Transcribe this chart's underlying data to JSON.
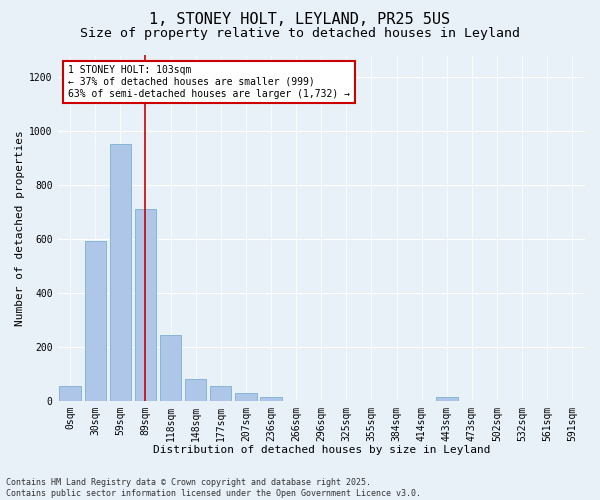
{
  "title": "1, STONEY HOLT, LEYLAND, PR25 5US",
  "subtitle": "Size of property relative to detached houses in Leyland",
  "xlabel": "Distribution of detached houses by size in Leyland",
  "ylabel": "Number of detached properties",
  "bar_labels": [
    "0sqm",
    "30sqm",
    "59sqm",
    "89sqm",
    "118sqm",
    "148sqm",
    "177sqm",
    "207sqm",
    "236sqm",
    "266sqm",
    "296sqm",
    "325sqm",
    "355sqm",
    "384sqm",
    "414sqm",
    "443sqm",
    "473sqm",
    "502sqm",
    "532sqm",
    "561sqm",
    "591sqm"
  ],
  "bar_values": [
    55,
    590,
    950,
    710,
    245,
    80,
    55,
    30,
    15,
    0,
    0,
    0,
    0,
    0,
    0,
    15,
    0,
    0,
    0,
    0,
    0
  ],
  "bar_color": "#aec6e8",
  "bar_edge_color": "#7aafd4",
  "vline_x_index": 3,
  "vline_color": "#cc0000",
  "annotation_text": "1 STONEY HOLT: 103sqm\n← 37% of detached houses are smaller (999)\n63% of semi-detached houses are larger (1,732) →",
  "annotation_box_color": "#cc0000",
  "ylim": [
    0,
    1280
  ],
  "yticks": [
    0,
    200,
    400,
    600,
    800,
    1000,
    1200
  ],
  "background_color": "#e8f0f8",
  "footer_line1": "Contains HM Land Registry data © Crown copyright and database right 2025.",
  "footer_line2": "Contains public sector information licensed under the Open Government Licence v3.0.",
  "title_fontsize": 11,
  "subtitle_fontsize": 9.5,
  "axis_label_fontsize": 8,
  "tick_fontsize": 7,
  "footer_fontsize": 6,
  "annotation_fontsize": 7
}
